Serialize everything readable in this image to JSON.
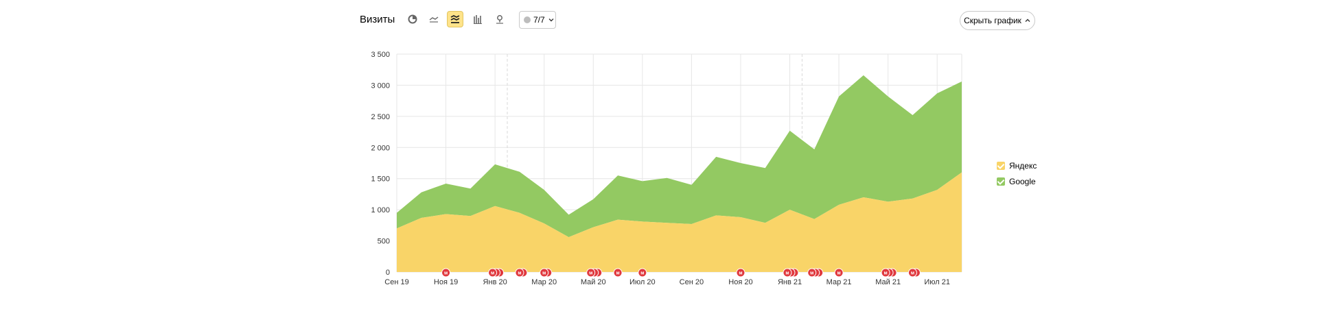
{
  "header": {
    "title": "Визиты",
    "goals_label": "7/7",
    "hide_button_label": "Скрыть график",
    "tools": [
      {
        "name": "pie-chart-icon",
        "active": false
      },
      {
        "name": "line-chart-icon",
        "active": false
      },
      {
        "name": "stacked-area-icon",
        "active": true
      },
      {
        "name": "bar-chart-icon",
        "active": false
      },
      {
        "name": "map-pin-icon",
        "active": false
      }
    ]
  },
  "colors": {
    "yandex": "#f9d468",
    "google": "#93c962",
    "marker": "#e0393e",
    "grid": "#e6e6e6",
    "accent_active": "#ffe38a"
  },
  "legend": [
    {
      "label": "Яндекс",
      "color": "#f9d468"
    },
    {
      "label": "Google",
      "color": "#93c962"
    }
  ],
  "chart_data": {
    "type": "area",
    "stacked": true,
    "ylim": [
      0,
      3500
    ],
    "yticks": [
      0,
      500,
      1000,
      1500,
      2000,
      2500,
      3000,
      3500
    ],
    "ytick_labels": [
      "0",
      "500",
      "1 000",
      "1 500",
      "2 000",
      "2 500",
      "3 000",
      "3 500"
    ],
    "x": [
      "2019-09",
      "2019-10",
      "2019-11",
      "2019-12",
      "2020-01",
      "2020-02",
      "2020-03",
      "2020-04",
      "2020-05",
      "2020-06",
      "2020-07",
      "2020-08",
      "2020-09",
      "2020-10",
      "2020-11",
      "2020-12",
      "2021-01",
      "2021-02",
      "2021-03",
      "2021-04",
      "2021-05",
      "2021-06",
      "2021-07",
      "2021-08"
    ],
    "xtick_labels": [
      "Сен 19",
      "Ноя 19",
      "Янв 20",
      "Мар 20",
      "Май 20",
      "Июл 20",
      "Сен 20",
      "Ноя 20",
      "Янв 21",
      "Мар 21",
      "Май 21",
      "Июл 21"
    ],
    "grid": true,
    "legend_position": "right",
    "series": [
      {
        "name": "Яндекс",
        "values": [
          700,
          870,
          930,
          900,
          1060,
          950,
          780,
          560,
          720,
          840,
          810,
          790,
          770,
          910,
          880,
          790,
          1000,
          850,
          1080,
          1200,
          1130,
          1180,
          1320,
          1600
        ]
      },
      {
        "name": "Google",
        "values": [
          250,
          410,
          490,
          440,
          670,
          660,
          540,
          360,
          450,
          710,
          650,
          720,
          630,
          940,
          870,
          880,
          1270,
          1120,
          1740,
          1960,
          1690,
          1340,
          1550,
          1460
        ]
      }
    ],
    "annotations": {
      "marker_label": "м",
      "markers": [
        {
          "x": 2.0,
          "count": 1
        },
        {
          "x": 3.9,
          "count": 3
        },
        {
          "x": 5.0,
          "count": 2
        },
        {
          "x": 6.0,
          "count": 2
        },
        {
          "x": 7.9,
          "count": 3
        },
        {
          "x": 9.0,
          "count": 1
        },
        {
          "x": 10.0,
          "count": 1
        },
        {
          "x": 14.0,
          "count": 1
        },
        {
          "x": 15.9,
          "count": 3
        },
        {
          "x": 16.9,
          "count": 3
        },
        {
          "x": 18.0,
          "count": 1
        },
        {
          "x": 19.9,
          "count": 3
        },
        {
          "x": 21.0,
          "count": 2
        }
      ]
    }
  }
}
